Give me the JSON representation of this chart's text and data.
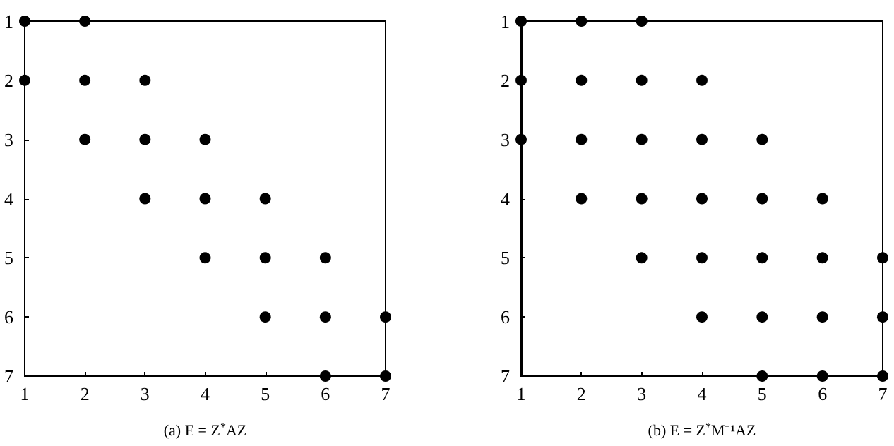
{
  "chart_data": [
    {
      "type": "scatter",
      "xlabel": "(a) E = Z$^{*}$AZ",
      "xlim": [
        1,
        7
      ],
      "ylim": [
        7,
        1
      ],
      "xticks": [
        1,
        2,
        3,
        4,
        5,
        6,
        7
      ],
      "yticks": [
        1,
        2,
        3,
        4,
        5,
        6,
        7
      ],
      "grid": false,
      "marker": "circle",
      "series": [
        {
          "color": "#000000",
          "x": [
            1,
            2,
            1,
            2,
            3,
            2,
            3,
            4,
            3,
            4,
            5,
            4,
            5,
            6,
            5,
            6,
            7,
            6,
            7
          ],
          "values": [
            1,
            1,
            2,
            2,
            2,
            3,
            3,
            3,
            4,
            4,
            4,
            5,
            5,
            5,
            6,
            6,
            6,
            7,
            7
          ]
        }
      ]
    },
    {
      "type": "scatter",
      "xlabel": "(b) E = Z$^{*}$M⁻¹AZ",
      "xlim": [
        1,
        7
      ],
      "ylim": [
        7,
        1
      ],
      "xticks": [
        1,
        2,
        3,
        4,
        5,
        6,
        7
      ],
      "yticks": [
        1,
        2,
        3,
        4,
        5,
        6,
        7
      ],
      "grid": false,
      "marker": "circle",
      "series": [
        {
          "color": "#000000",
          "x": [
            1,
            2,
            3,
            1,
            2,
            3,
            4,
            1,
            2,
            3,
            4,
            5,
            2,
            3,
            4,
            5,
            6,
            3,
            4,
            5,
            6,
            7,
            4,
            5,
            6,
            7,
            5,
            6,
            7
          ],
          "values": [
            1,
            1,
            1,
            2,
            2,
            2,
            2,
            3,
            3,
            3,
            3,
            3,
            4,
            4,
            4,
            4,
            4,
            5,
            5,
            5,
            5,
            5,
            6,
            6,
            6,
            6,
            7,
            7,
            7
          ]
        }
      ]
    }
  ]
}
